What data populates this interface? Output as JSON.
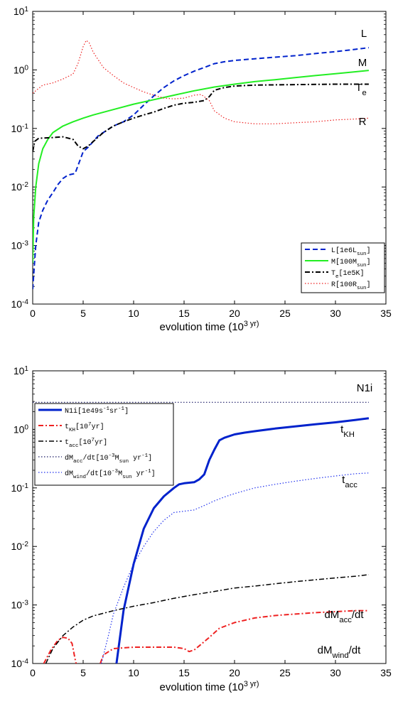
{
  "chart_data": [
    {
      "type": "line",
      "xlabel": "evolution time (10^3 yr)",
      "ylabel": "",
      "xlim": [
        0,
        35
      ],
      "ylim": [
        0.0001,
        10
      ],
      "yscale": "log",
      "x_ticks": [
        "0",
        "5",
        "10",
        "15",
        "20",
        "25",
        "30",
        "35"
      ],
      "y_ticks": [
        "10^-4",
        "10^-3",
        "10^-2",
        "10^-1",
        "10^0",
        "10^1"
      ],
      "legend_position": "bottom-right",
      "series": [
        {
          "name": "L[1e6L_sun]",
          "label": "L",
          "label_sub": "",
          "color": "#0022cc",
          "style": "dashed",
          "width": 2,
          "points": [
            [
              0,
              0.00018
            ],
            [
              0.3,
              0.001
            ],
            [
              0.6,
              0.0025
            ],
            [
              1,
              0.004
            ],
            [
              1.5,
              0.006
            ],
            [
              2,
              0.008
            ],
            [
              2.5,
              0.011
            ],
            [
              3,
              0.014
            ],
            [
              3.5,
              0.016
            ],
            [
              4.2,
              0.017
            ],
            [
              5,
              0.04
            ],
            [
              5.5,
              0.048
            ],
            [
              6.5,
              0.075
            ],
            [
              8,
              0.11
            ],
            [
              9,
              0.13
            ],
            [
              10,
              0.17
            ],
            [
              11,
              0.25
            ],
            [
              12,
              0.36
            ],
            [
              13,
              0.5
            ],
            [
              14,
              0.65
            ],
            [
              15,
              0.8
            ],
            [
              16,
              0.95
            ],
            [
              17,
              1.1
            ],
            [
              18,
              1.28
            ],
            [
              19,
              1.38
            ],
            [
              20,
              1.45
            ],
            [
              22,
              1.55
            ],
            [
              24,
              1.65
            ],
            [
              26,
              1.75
            ],
            [
              28,
              1.9
            ],
            [
              30,
              2.05
            ],
            [
              32,
              2.25
            ],
            [
              33.3,
              2.4
            ]
          ]
        },
        {
          "name": "M[100M_sun]",
          "label": "M",
          "label_sub": "",
          "color": "#22ee22",
          "style": "solid",
          "width": 2,
          "points": [
            [
              0,
              0.0005
            ],
            [
              0.1,
              0.003
            ],
            [
              0.3,
              0.01
            ],
            [
              0.6,
              0.025
            ],
            [
              1,
              0.045
            ],
            [
              1.5,
              0.065
            ],
            [
              2,
              0.085
            ],
            [
              3,
              0.11
            ],
            [
              4,
              0.13
            ],
            [
              5,
              0.15
            ],
            [
              6,
              0.17
            ],
            [
              8,
              0.21
            ],
            [
              10,
              0.26
            ],
            [
              12,
              0.31
            ],
            [
              14,
              0.37
            ],
            [
              16,
              0.44
            ],
            [
              18,
              0.51
            ],
            [
              20,
              0.57
            ],
            [
              22,
              0.63
            ],
            [
              24,
              0.68
            ],
            [
              26,
              0.74
            ],
            [
              28,
              0.8
            ],
            [
              30,
              0.86
            ],
            [
              32,
              0.93
            ],
            [
              33.3,
              0.98
            ]
          ]
        },
        {
          "name": "T_e[1e5K]",
          "label": "T",
          "label_sub": "e",
          "color": "#000000",
          "style": "dashdot",
          "width": 2,
          "points": [
            [
              0,
              0.04
            ],
            [
              0.2,
              0.06
            ],
            [
              0.6,
              0.068
            ],
            [
              2,
              0.07
            ],
            [
              3,
              0.072
            ],
            [
              4,
              0.065
            ],
            [
              4.5,
              0.05
            ],
            [
              5,
              0.045
            ],
            [
              5.5,
              0.05
            ],
            [
              6,
              0.06
            ],
            [
              7,
              0.085
            ],
            [
              8,
              0.11
            ],
            [
              9,
              0.13
            ],
            [
              10,
              0.15
            ],
            [
              11,
              0.17
            ],
            [
              12,
              0.19
            ],
            [
              13,
              0.22
            ],
            [
              14,
              0.25
            ],
            [
              15,
              0.27
            ],
            [
              16,
              0.28
            ],
            [
              17,
              0.3
            ],
            [
              17.5,
              0.35
            ],
            [
              18,
              0.45
            ],
            [
              19,
              0.5
            ],
            [
              20,
              0.53
            ],
            [
              22,
              0.55
            ],
            [
              26,
              0.56
            ],
            [
              30,
              0.57
            ],
            [
              33.3,
              0.57
            ]
          ]
        },
        {
          "name": "R[100R_sun]",
          "label": "R",
          "label_sub": "",
          "color": "#ee2222",
          "style": "dotted",
          "width": 1.2,
          "points": [
            [
              0,
              0.4
            ],
            [
              1,
              0.55
            ],
            [
              2,
              0.6
            ],
            [
              3,
              0.7
            ],
            [
              4,
              0.85
            ],
            [
              4.5,
              1.3
            ],
            [
              5,
              2.5
            ],
            [
              5.3,
              3.2
            ],
            [
              5.6,
              2.9
            ],
            [
              6,
              2
            ],
            [
              7,
              1.1
            ],
            [
              8,
              0.8
            ],
            [
              9,
              0.6
            ],
            [
              10,
              0.5
            ],
            [
              11,
              0.42
            ],
            [
              12,
              0.37
            ],
            [
              13,
              0.33
            ],
            [
              14,
              0.32
            ],
            [
              15,
              0.33
            ],
            [
              16,
              0.37
            ],
            [
              16.7,
              0.38
            ],
            [
              17.5,
              0.3
            ],
            [
              18,
              0.2
            ],
            [
              19,
              0.15
            ],
            [
              20,
              0.13
            ],
            [
              22,
              0.12
            ],
            [
              24,
              0.12
            ],
            [
              26,
              0.125
            ],
            [
              28,
              0.13
            ],
            [
              30,
              0.14
            ],
            [
              32,
              0.145
            ],
            [
              33.3,
              0.15
            ]
          ]
        }
      ]
    },
    {
      "type": "line",
      "xlabel": "evolution time (10^3 yr)",
      "ylabel": "",
      "xlim": [
        0,
        35
      ],
      "ylim": [
        0.0001,
        10
      ],
      "yscale": "log",
      "x_ticks": [
        "0",
        "5",
        "10",
        "15",
        "20",
        "25",
        "30",
        "35"
      ],
      "y_ticks": [
        "10^-4",
        "10^-3",
        "10^-2",
        "10^-1",
        "10^0",
        "10^1"
      ],
      "legend_position": "top-left",
      "series": [
        {
          "name": "N1i[1e49s^-1sr^-1]",
          "label": "N1i",
          "label_sub": "",
          "color": "#0022cc",
          "style": "solid",
          "width": 3,
          "points": [
            [
              8.3,
              0.0001
            ],
            [
              9,
              0.0008
            ],
            [
              10,
              0.005
            ],
            [
              11,
              0.02
            ],
            [
              12,
              0.045
            ],
            [
              13,
              0.072
            ],
            [
              14,
              0.1
            ],
            [
              14.5,
              0.115
            ],
            [
              15,
              0.12
            ],
            [
              16,
              0.125
            ],
            [
              16.5,
              0.14
            ],
            [
              17,
              0.17
            ],
            [
              17.5,
              0.3
            ],
            [
              18,
              0.45
            ],
            [
              18.5,
              0.65
            ],
            [
              19,
              0.72
            ],
            [
              20,
              0.82
            ],
            [
              21,
              0.88
            ],
            [
              22,
              0.93
            ],
            [
              24,
              1.03
            ],
            [
              26,
              1.12
            ],
            [
              28,
              1.22
            ],
            [
              30,
              1.32
            ],
            [
              32,
              1.45
            ],
            [
              33.3,
              1.55
            ]
          ]
        },
        {
          "name": "t_KH[10^7yr]",
          "label": "t",
          "label_sub": "KH",
          "color": "#ee2222",
          "style": "dashdot",
          "width": 2,
          "points": [
            [
              1.1,
              0.0001
            ],
            [
              1.8,
              0.00017
            ],
            [
              2.5,
              0.00025
            ],
            [
              3,
              0.00028
            ],
            [
              3.5,
              0.00027
            ],
            [
              3.9,
              0.00022
            ],
            [
              4.2,
              0.00012
            ],
            [
              4.3,
              0.0001
            ],
            [
              null,
              null
            ],
            [
              6.7,
              0.0001
            ],
            [
              7,
              0.00014
            ],
            [
              8,
              0.00018
            ],
            [
              10,
              0.00019
            ],
            [
              12,
              0.00019
            ],
            [
              14,
              0.00019
            ],
            [
              15,
              0.00018
            ],
            [
              15.5,
              0.00016
            ],
            [
              16,
              0.00017
            ],
            [
              16.5,
              0.0002
            ],
            [
              17.5,
              0.00028
            ],
            [
              18.5,
              0.0004
            ],
            [
              20,
              0.0005
            ],
            [
              22,
              0.0006
            ],
            [
              24,
              0.00066
            ],
            [
              26,
              0.0007
            ],
            [
              28,
              0.00074
            ],
            [
              30,
              0.00077
            ],
            [
              32,
              0.0008
            ],
            [
              33.3,
              0.0008
            ]
          ]
        },
        {
          "name": "t_acc[10^7yr]",
          "label": "t",
          "label_sub": "acc",
          "color": "#000000",
          "style": "dashdot",
          "width": 1.5,
          "points": [
            [
              1.3,
              0.0001
            ],
            [
              2,
              0.00018
            ],
            [
              3,
              0.0003
            ],
            [
              4,
              0.00042
            ],
            [
              5,
              0.00055
            ],
            [
              6,
              0.00065
            ],
            [
              8,
              0.0008
            ],
            [
              10,
              0.00095
            ],
            [
              12,
              0.0011
            ],
            [
              14,
              0.0013
            ],
            [
              16,
              0.0015
            ],
            [
              18,
              0.0017
            ],
            [
              20,
              0.00195
            ],
            [
              22,
              0.0021
            ],
            [
              24,
              0.0023
            ],
            [
              26,
              0.0025
            ],
            [
              28,
              0.0027
            ],
            [
              30,
              0.0029
            ],
            [
              32,
              0.0031
            ],
            [
              33.3,
              0.0033
            ]
          ]
        },
        {
          "name": "dM_acc/dt[10^-3M_sun yr^-1]",
          "label": "dM",
          "label_sub": "acc",
          "label_suffix": "/dt",
          "color": "#1a1a66",
          "style": "dotted",
          "width": 1.2,
          "points": [
            [
              0,
              2.9
            ],
            [
              33.3,
              2.9
            ]
          ]
        },
        {
          "name": "dM_wind/dt[10^-3M_sun yr^-1]",
          "label": "dM",
          "label_sub": "wind",
          "label_suffix": "/dt",
          "color": "#2233ee",
          "style": "dotted",
          "width": 1.2,
          "points": [
            [
              6.8,
              0.0001
            ],
            [
              7.5,
              0.0003
            ],
            [
              8,
              0.0007
            ],
            [
              9,
              0.002
            ],
            [
              10,
              0.005
            ],
            [
              11,
              0.01
            ],
            [
              12,
              0.018
            ],
            [
              13,
              0.028
            ],
            [
              14,
              0.038
            ],
            [
              15,
              0.04
            ],
            [
              16,
              0.042
            ],
            [
              17,
              0.05
            ],
            [
              18,
              0.06
            ],
            [
              19,
              0.07
            ],
            [
              20,
              0.08
            ],
            [
              22,
              0.1
            ],
            [
              24,
              0.115
            ],
            [
              26,
              0.13
            ],
            [
              28,
              0.145
            ],
            [
              30,
              0.16
            ],
            [
              32,
              0.175
            ],
            [
              33.3,
              0.18
            ]
          ]
        }
      ]
    }
  ]
}
